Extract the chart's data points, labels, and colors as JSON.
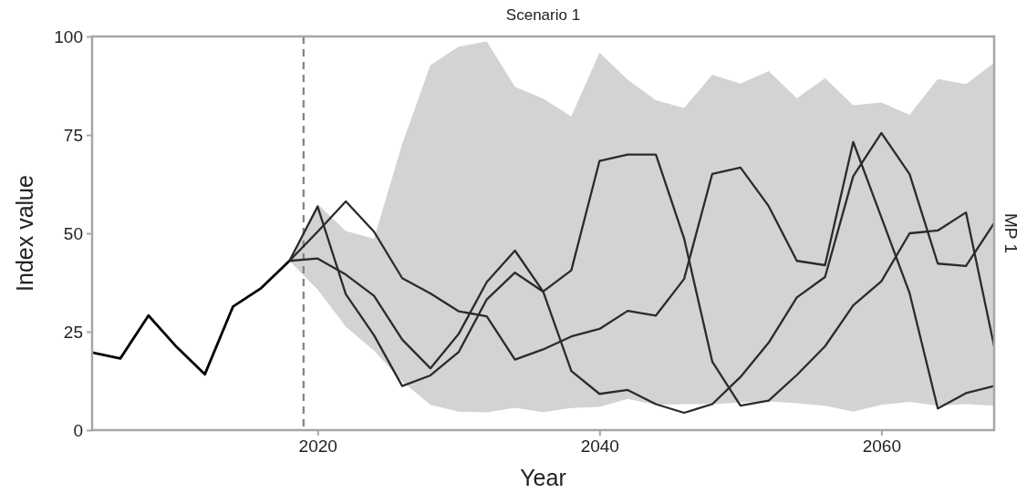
{
  "chart_data": {
    "type": "line",
    "title": "Scenario 1",
    "xlabel": "Year",
    "ylabel": "Index value",
    "annotations": [
      "MP 1"
    ],
    "xlim": [
      2004,
      2068
    ],
    "xticks": [
      2020,
      2040,
      2060
    ],
    "ylim": [
      0,
      100
    ],
    "yticks": [
      0,
      25,
      50,
      75,
      100
    ],
    "grid": false,
    "line_style": "solid",
    "marker": "none",
    "ref_lines": [
      {
        "axis": "x",
        "value": 2019,
        "label": null,
        "color": "#808080",
        "line_style": "dashed"
      }
    ],
    "series": [
      {
        "color": "#000000",
        "x": [
          2004,
          2006,
          2008,
          2010,
          2012,
          2014,
          2016,
          2018
        ],
        "values": [
          19.7,
          18.2,
          29.1,
          21.1,
          14.2,
          31.4,
          36.1,
          43.0
        ]
      },
      {
        "color": "#2b2b2b",
        "x": [
          2018,
          2020,
          2022,
          2024,
          2026,
          2028,
          2030,
          2032,
          2034,
          2036,
          2038,
          2040,
          2042,
          2044,
          2046,
          2048,
          2050,
          2052,
          2054,
          2056,
          2058,
          2060,
          2062,
          2064,
          2066,
          2068
        ],
        "values": [
          43.0,
          56.8,
          34.5,
          24.1,
          11.2,
          13.9,
          19.8,
          33.2,
          40.0,
          35.2,
          40.6,
          68.4,
          70.0,
          70.0,
          48.7,
          17.4,
          6.2,
          7.5,
          14.0,
          21.3,
          31.7,
          37.8,
          50.0,
          50.7,
          55.3,
          21.3
        ],
        "lower": [
          43.0,
          35.7,
          26.3,
          20.2,
          12.4,
          6.4,
          4.7,
          4.5,
          5.7,
          4.6,
          5.6,
          5.9,
          7.9,
          6.4,
          6.6,
          6.6,
          7.0,
          7.3,
          6.8,
          6.2,
          4.7,
          6.4,
          7.2,
          6.2,
          6.6,
          6.2
        ],
        "upper": [
          43.0,
          57.4,
          50.6,
          48.6,
          72.7,
          92.7,
          97.4,
          98.7,
          87.2,
          84.2,
          79.7,
          95.9,
          89.0,
          83.8,
          81.8,
          90.3,
          88.0,
          91.2,
          84.3,
          89.4,
          82.5,
          83.2,
          80.1,
          89.2,
          87.9,
          93.3
        ]
      },
      {
        "color": "#2b2b2b",
        "x": [
          2018,
          2020,
          2022,
          2024,
          2026,
          2028,
          2030,
          2032,
          2034,
          2036,
          2038,
          2040,
          2042,
          2044,
          2046,
          2048,
          2050,
          2052,
          2054,
          2056,
          2058,
          2060,
          2062,
          2064,
          2066,
          2068
        ],
        "values": [
          43.0,
          50.4,
          58.1,
          50.4,
          38.6,
          34.7,
          30.2,
          28.9,
          17.9,
          20.5,
          23.8,
          25.7,
          30.3,
          29.1,
          38.4,
          65.1,
          66.7,
          56.9,
          43.0,
          41.9,
          73.2,
          54.0,
          34.8,
          5.5,
          9.4,
          11.2
        ]
      },
      {
        "color": "#2b2b2b",
        "x": [
          2018,
          2020,
          2022,
          2024,
          2026,
          2028,
          2030,
          2032,
          2034,
          2036,
          2038,
          2040,
          2042,
          2044,
          2046,
          2048,
          2050,
          2052,
          2054,
          2056,
          2058,
          2060,
          2062,
          2064,
          2066,
          2068
        ],
        "values": [
          43.0,
          43.6,
          39.5,
          34.1,
          23.0,
          15.7,
          24.4,
          37.6,
          45.6,
          35.2,
          15.0,
          9.2,
          10.2,
          6.6,
          4.4,
          6.6,
          13.5,
          22.2,
          33.7,
          38.9,
          64.5,
          75.5,
          65.0,
          42.3,
          41.7,
          52.6
        ]
      }
    ]
  }
}
